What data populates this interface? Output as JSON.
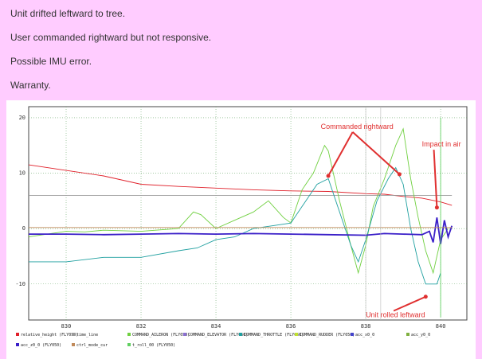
{
  "notes": [
    "Unit drifted leftward to tree.",
    "User commanded rightward but not responsive.",
    "Possible IMU error.",
    "Warranty."
  ],
  "chart_data": {
    "type": "line",
    "xlim": [
      829,
      840.7
    ],
    "ylim": [
      -16.5,
      22
    ],
    "x_ticks": [
      830,
      832,
      834,
      836,
      838,
      840
    ],
    "y_ticks": [
      20,
      10,
      0,
      -10
    ],
    "grid": true,
    "legend_position": "bottom",
    "colors": {
      "relative_height": "#e0202a",
      "time_line": "#999999",
      "COMMAND_AILERON": "#70d040",
      "COMMAND_ELEVATOR": "#8a6fd0",
      "COMMAND_THROTTLE": "#20a0a0",
      "COMMAND_RUDDER": "#c0e030",
      "acc_x0": "#4444cc",
      "acc_y0": "#80b040",
      "acc_z0": "#3a1fc8",
      "ctrl_mode_cur": "#c08a5a",
      "t_roll_00": "#60d060"
    },
    "series": [
      {
        "name": "relative_height (FLY050)",
        "points": [
          [
            829,
            11.5
          ],
          [
            830,
            10.5
          ],
          [
            831,
            9.5
          ],
          [
            832,
            8.0
          ],
          [
            833,
            7.6
          ],
          [
            834,
            7.3
          ],
          [
            835,
            7.0
          ],
          [
            836,
            6.8
          ],
          [
            837,
            6.7
          ],
          [
            838,
            6.3
          ],
          [
            838.5,
            6.2
          ],
          [
            839,
            5.8
          ],
          [
            839.5,
            5.5
          ],
          [
            840,
            4.8
          ],
          [
            840.3,
            4.2
          ]
        ]
      },
      {
        "name": "time_line (FLY050)",
        "points": [
          [
            829,
            6.0
          ],
          [
            840.3,
            6.0
          ]
        ]
      },
      {
        "name": "COMMAND_AILERON (FLY050)",
        "points": [
          [
            829,
            -1.5
          ],
          [
            829.5,
            -1.0
          ],
          [
            830,
            -0.5
          ],
          [
            830.5,
            -0.6
          ],
          [
            831,
            -0.3
          ],
          [
            832,
            -0.5
          ],
          [
            833,
            0.0
          ],
          [
            833.4,
            3.0
          ],
          [
            833.6,
            2.5
          ],
          [
            834,
            0.0
          ],
          [
            834.5,
            1.5
          ],
          [
            835,
            3.0
          ],
          [
            835.4,
            5.0
          ],
          [
            835.8,
            2.0
          ],
          [
            836,
            1.0
          ],
          [
            836.3,
            7.0
          ],
          [
            836.6,
            10.0
          ],
          [
            836.9,
            15.0
          ],
          [
            837.0,
            14.0
          ],
          [
            837.3,
            5.0
          ],
          [
            837.6,
            -3.0
          ],
          [
            837.8,
            -8.0
          ],
          [
            838.0,
            -3.0
          ],
          [
            838.2,
            4.0
          ],
          [
            838.5,
            9.0
          ],
          [
            838.8,
            15.0
          ],
          [
            839.0,
            18.0
          ],
          [
            839.2,
            9.0
          ],
          [
            839.4,
            2.0
          ],
          [
            839.6,
            -4.0
          ],
          [
            839.8,
            -8.0
          ],
          [
            840.0,
            -2.0
          ],
          [
            840.2,
            0.0
          ]
        ]
      },
      {
        "name": "COMMAND_THROTTLE (FLY050)",
        "points": [
          [
            829,
            -6.0
          ],
          [
            830,
            -6.0
          ],
          [
            831,
            -5.2
          ],
          [
            832,
            -5.2
          ],
          [
            833,
            -4.0
          ],
          [
            833.5,
            -3.5
          ],
          [
            834,
            -2.0
          ],
          [
            834.5,
            -1.5
          ],
          [
            835,
            0.0
          ],
          [
            835.5,
            0.5
          ],
          [
            836,
            1.0
          ],
          [
            836.3,
            4.0
          ],
          [
            836.7,
            8.0
          ],
          [
            837,
            9.0
          ],
          [
            837.2,
            5.0
          ],
          [
            837.4,
            1.0
          ],
          [
            837.6,
            -3.0
          ],
          [
            837.8,
            -6.0
          ],
          [
            838.0,
            -2.0
          ],
          [
            838.3,
            5.0
          ],
          [
            838.6,
            9.0
          ],
          [
            838.8,
            11.0
          ],
          [
            839.0,
            8.0
          ],
          [
            839.2,
            0.0
          ],
          [
            839.4,
            -6.0
          ],
          [
            839.6,
            -10.0
          ],
          [
            839.9,
            -10.0
          ],
          [
            840.0,
            -8.0
          ]
        ]
      },
      {
        "name": "acc_z0 (FLY050)",
        "points": [
          [
            829,
            -1.0
          ],
          [
            830,
            -1.0
          ],
          [
            831,
            -1.1
          ],
          [
            832,
            -1.0
          ],
          [
            833,
            -0.9
          ],
          [
            834,
            -1.0
          ],
          [
            835,
            -0.9
          ],
          [
            836,
            -1.0
          ],
          [
            837,
            -1.1
          ],
          [
            838,
            -1.2
          ],
          [
            838.5,
            -0.9
          ],
          [
            839,
            -1.0
          ],
          [
            839.5,
            -1.1
          ],
          [
            839.7,
            -0.5
          ],
          [
            839.8,
            -2.5
          ],
          [
            839.9,
            2.0
          ],
          [
            840.0,
            -2.8
          ],
          [
            840.1,
            1.5
          ],
          [
            840.2,
            -1.5
          ],
          [
            840.3,
            0.5
          ]
        ]
      },
      {
        "name": "ctrl_mode_cur",
        "points": [
          [
            829,
            0.2
          ],
          [
            840.3,
            0.2
          ]
        ]
      },
      {
        "name": "t_roll_00 (FLY050)",
        "points": [
          [
            840,
            20
          ],
          [
            840,
            -16
          ]
        ]
      }
    ],
    "legend": [
      "relative_height (FLY050)",
      "time_line",
      "COMMAND_AILERON (FLY050)",
      "COMMAND_ELEVATOR (FLY050)",
      "COMMAND_THROTTLE (FLY050)",
      "COMMAND_RUDDER (FLY050)",
      "acc_x0_0",
      "acc_y0_0",
      "acc_z0_0 (FLY050)",
      "ctrl_mode_cur",
      "t_roll_00 (FLY050)"
    ],
    "annotations": [
      {
        "text": "Commanded rightward",
        "x": 836.8,
        "y": 18.0
      },
      {
        "text": "Impact in air",
        "x": 839.5,
        "y": 14.8
      },
      {
        "text": "Unit rolled leftward",
        "x": 838.0,
        "y": -16.0
      }
    ]
  }
}
